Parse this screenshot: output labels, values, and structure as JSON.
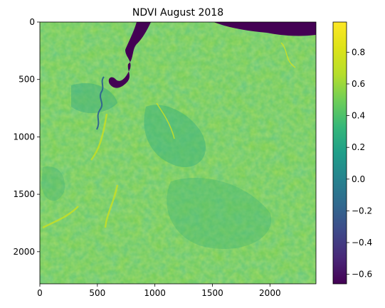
{
  "chart_data": {
    "type": "heatmap",
    "title": "NDVI August 2018",
    "x_ticks": [
      "0",
      "500",
      "1000",
      "1500",
      "2000"
    ],
    "x_tick_values": [
      0,
      500,
      1000,
      1500,
      2000
    ],
    "y_ticks": [
      "0",
      "500",
      "1000",
      "1500",
      "2000"
    ],
    "y_tick_values": [
      0,
      500,
      1000,
      1500,
      2000
    ],
    "x_range": [
      0,
      2400
    ],
    "y_range": [
      0,
      2280
    ],
    "y_inverted": true,
    "colormap": "viridis",
    "colorbar": {
      "range": [
        -0.66,
        0.99
      ],
      "ticks": [
        "0.8",
        "0.6",
        "0.4",
        "0.2",
        "0.0",
        "−0.2",
        "−0.4",
        "−0.6"
      ],
      "tick_values": [
        0.8,
        0.6,
        0.4,
        0.2,
        0.0,
        -0.2,
        -0.4,
        -0.6
      ]
    },
    "image_description_regions": [
      {
        "feature": "river",
        "value": -0.6
      },
      {
        "feature": "vegetation",
        "value": 0.6
      },
      {
        "feature": "moist vegetation",
        "value": 0.3
      }
    ],
    "colors": {
      "low": "#440154",
      "mid": "#21918c",
      "high": "#fde725"
    }
  }
}
